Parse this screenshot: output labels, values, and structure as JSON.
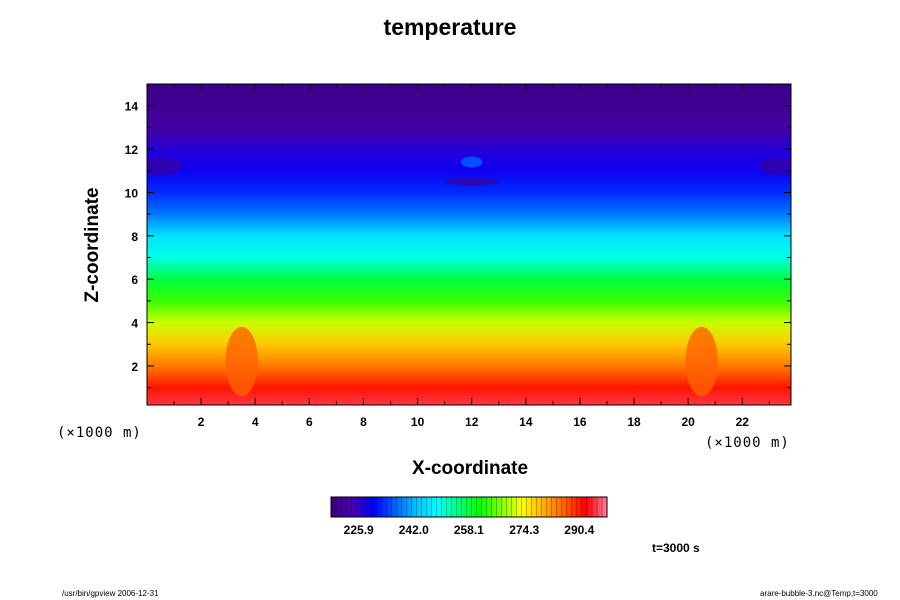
{
  "chart_data": {
    "type": "heatmap",
    "title": "temperature",
    "xlabel": "X-coordinate",
    "ylabel": "Z-coordinate",
    "x_scale_label": "(×1000 m)",
    "z_scale_label": "(×1000 m)",
    "xlim": [
      0,
      23.8
    ],
    "ylim": [
      0.2,
      15
    ],
    "x_ticks": [
      2,
      4,
      6,
      8,
      10,
      12,
      14,
      16,
      18,
      20,
      22
    ],
    "y_ticks": [
      2,
      4,
      6,
      8,
      10,
      12,
      14
    ],
    "colorbar_ticks": [
      225.9,
      242.0,
      258.1,
      274.3,
      290.4
    ],
    "colorbar_range": [
      217.8,
      298.5
    ],
    "colormap": [
      "#3b0080",
      "#4a00b0",
      "#0000ff",
      "#0060ff",
      "#00c0ff",
      "#00ffff",
      "#00ff80",
      "#00ff00",
      "#80ff00",
      "#ffff00",
      "#ffb000",
      "#ff6000",
      "#ff0000",
      "#ff7f9f"
    ],
    "vertical_temperature_profile": [
      {
        "z": 0.2,
        "t": 295
      },
      {
        "z": 1.0,
        "t": 291
      },
      {
        "z": 2.0,
        "t": 284
      },
      {
        "z": 3.0,
        "t": 278
      },
      {
        "z": 4.0,
        "t": 271
      },
      {
        "z": 5.0,
        "t": 264
      },
      {
        "z": 6.0,
        "t": 258
      },
      {
        "z": 7.0,
        "t": 250
      },
      {
        "z": 8.0,
        "t": 246
      },
      {
        "z": 9.0,
        "t": 238
      },
      {
        "z": 10.0,
        "t": 233
      },
      {
        "z": 11.0,
        "t": 229
      },
      {
        "z": 12.0,
        "t": 227
      },
      {
        "z": 13.0,
        "t": 222
      },
      {
        "z": 14.0,
        "t": 220
      },
      {
        "z": 15.0,
        "t": 219
      }
    ]
  },
  "time_label": "t=3000 s",
  "footer_left": "/usr/bin/gpview 2006-12-31",
  "footer_right": "arare-bubble-3.nc@Temp,t=3000"
}
